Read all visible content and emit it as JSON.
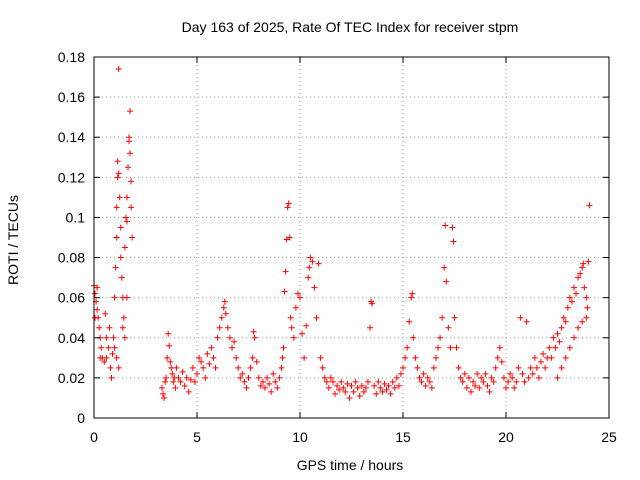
{
  "chart_data": {
    "type": "scatter",
    "title": "Day 163 of 2025, Rate Of TEC Index for receiver stpm",
    "xlabel": "GPS time / hours",
    "ylabel": "ROTI / TECUs",
    "xlim": [
      0,
      25
    ],
    "ylim": [
      0,
      0.18
    ],
    "xticks": [
      0,
      5,
      10,
      15,
      20,
      25
    ],
    "xtick_labels": [
      "0",
      "5",
      "10",
      "15",
      "20",
      "25"
    ],
    "yticks": [
      0,
      0.02,
      0.04,
      0.06,
      0.08,
      0.1,
      0.12,
      0.14,
      0.16,
      0.18
    ],
    "ytick_labels": [
      "0",
      "0.02",
      "0.04",
      "0.06",
      "0.08",
      "0.1",
      "0.12",
      "0.14",
      "0.16",
      "0.18"
    ],
    "grid": true,
    "marker": "+",
    "color": "#ff0000",
    "series": [
      {
        "name": "stpm",
        "points": [
          [
            0.0,
            0.066
          ],
          [
            0.05,
            0.062
          ],
          [
            0.1,
            0.058
          ],
          [
            0.15,
            0.054
          ],
          [
            0.2,
            0.05
          ],
          [
            0.25,
            0.045
          ],
          [
            0.3,
            0.04
          ],
          [
            0.35,
            0.035
          ],
          [
            0.4,
            0.03
          ],
          [
            0.5,
            0.028
          ],
          [
            0.6,
            0.03
          ],
          [
            0.7,
            0.035
          ],
          [
            0.8,
            0.025
          ],
          [
            0.85,
            0.02
          ],
          [
            0.9,
            0.032
          ],
          [
            0.95,
            0.04
          ],
          [
            1.0,
            0.06
          ],
          [
            1.05,
            0.075
          ],
          [
            1.1,
            0.09
          ],
          [
            1.1,
            0.105
          ],
          [
            1.15,
            0.12
          ],
          [
            1.15,
            0.128
          ],
          [
            1.2,
            0.122
          ],
          [
            1.2,
            0.174
          ],
          [
            1.25,
            0.11
          ],
          [
            1.3,
            0.095
          ],
          [
            1.3,
            0.08
          ],
          [
            1.35,
            0.07
          ],
          [
            1.4,
            0.06
          ],
          [
            1.45,
            0.05
          ],
          [
            1.5,
            0.085
          ],
          [
            1.55,
            0.1
          ],
          [
            1.6,
            0.11
          ],
          [
            1.6,
            0.098
          ],
          [
            1.65,
            0.125
          ],
          [
            1.7,
            0.14
          ],
          [
            1.7,
            0.138
          ],
          [
            1.75,
            0.153
          ],
          [
            1.75,
            0.132
          ],
          [
            1.8,
            0.118
          ],
          [
            1.8,
            0.105
          ],
          [
            1.85,
            0.09
          ],
          [
            1.6,
            0.06
          ],
          [
            1.5,
            0.04
          ],
          [
            0.55,
            0.052
          ],
          [
            0.75,
            0.045
          ],
          [
            0.15,
            0.065
          ],
          [
            0.05,
            0.05
          ],
          [
            0.3,
            0.03
          ],
          [
            0.6,
            0.04
          ],
          [
            1.1,
            0.03
          ],
          [
            1.2,
            0.025
          ],
          [
            1.0,
            0.035
          ],
          [
            1.4,
            0.045
          ],
          [
            3.3,
            0.015
          ],
          [
            3.35,
            0.012
          ],
          [
            3.4,
            0.01
          ],
          [
            3.45,
            0.018
          ],
          [
            3.5,
            0.02
          ],
          [
            3.55,
            0.03
          ],
          [
            3.6,
            0.042
          ],
          [
            3.65,
            0.036
          ],
          [
            3.7,
            0.028
          ],
          [
            3.75,
            0.025
          ],
          [
            3.8,
            0.022
          ],
          [
            3.85,
            0.018
          ],
          [
            3.9,
            0.02
          ],
          [
            3.95,
            0.015
          ],
          [
            4.0,
            0.025
          ],
          [
            4.1,
            0.02
          ],
          [
            4.2,
            0.018
          ],
          [
            4.3,
            0.023
          ],
          [
            4.4,
            0.016
          ],
          [
            4.5,
            0.02
          ],
          [
            4.6,
            0.013
          ],
          [
            4.7,
            0.019
          ],
          [
            4.8,
            0.025
          ],
          [
            4.9,
            0.018
          ],
          [
            5.0,
            0.022
          ],
          [
            5.1,
            0.03
          ],
          [
            5.2,
            0.028
          ],
          [
            5.3,
            0.025
          ],
          [
            5.4,
            0.02
          ],
          [
            5.5,
            0.032
          ],
          [
            5.6,
            0.027
          ],
          [
            5.7,
            0.035
          ],
          [
            5.8,
            0.03
          ],
          [
            5.9,
            0.025
          ],
          [
            6.0,
            0.04
          ],
          [
            6.1,
            0.045
          ],
          [
            6.2,
            0.05
          ],
          [
            6.3,
            0.055
          ],
          [
            6.35,
            0.058
          ],
          [
            6.4,
            0.052
          ],
          [
            6.5,
            0.045
          ],
          [
            6.6,
            0.04
          ],
          [
            6.7,
            0.035
          ],
          [
            6.8,
            0.038
          ],
          [
            6.9,
            0.03
          ],
          [
            7.0,
            0.025
          ],
          [
            7.1,
            0.02
          ],
          [
            7.2,
            0.022
          ],
          [
            7.3,
            0.018
          ],
          [
            7.4,
            0.015
          ],
          [
            7.5,
            0.02
          ],
          [
            7.6,
            0.025
          ],
          [
            7.7,
            0.03
          ],
          [
            7.75,
            0.043
          ],
          [
            7.8,
            0.04
          ],
          [
            7.9,
            0.028
          ],
          [
            8.0,
            0.02
          ],
          [
            8.1,
            0.016
          ],
          [
            8.2,
            0.018
          ],
          [
            8.3,
            0.015
          ],
          [
            8.4,
            0.02
          ],
          [
            8.5,
            0.017
          ],
          [
            8.6,
            0.013
          ],
          [
            8.7,
            0.022
          ],
          [
            8.8,
            0.018
          ],
          [
            8.9,
            0.015
          ],
          [
            9.0,
            0.02
          ],
          [
            9.1,
            0.025
          ],
          [
            9.15,
            0.03
          ],
          [
            9.2,
            0.035
          ],
          [
            9.25,
            0.063
          ],
          [
            9.3,
            0.073
          ],
          [
            9.35,
            0.089
          ],
          [
            9.4,
            0.105
          ],
          [
            9.45,
            0.107
          ],
          [
            9.5,
            0.09
          ],
          [
            9.55,
            0.05
          ],
          [
            9.6,
            0.045
          ],
          [
            9.7,
            0.04
          ],
          [
            9.8,
            0.055
          ],
          [
            9.9,
            0.062
          ],
          [
            10.0,
            0.06
          ],
          [
            10.1,
            0.042
          ],
          [
            10.2,
            0.03
          ],
          [
            10.3,
            0.046
          ],
          [
            10.4,
            0.07
          ],
          [
            10.45,
            0.075
          ],
          [
            10.5,
            0.08
          ],
          [
            10.6,
            0.078
          ],
          [
            10.7,
            0.065
          ],
          [
            10.8,
            0.05
          ],
          [
            10.9,
            0.077
          ],
          [
            11.0,
            0.03
          ],
          [
            11.1,
            0.025
          ],
          [
            11.2,
            0.02
          ],
          [
            11.3,
            0.018
          ],
          [
            11.4,
            0.015
          ],
          [
            11.5,
            0.02
          ],
          [
            11.6,
            0.018
          ],
          [
            11.7,
            0.012
          ],
          [
            11.8,
            0.016
          ],
          [
            11.9,
            0.014
          ],
          [
            12.0,
            0.018
          ],
          [
            12.1,
            0.015
          ],
          [
            12.2,
            0.013
          ],
          [
            12.3,
            0.017
          ],
          [
            12.4,
            0.01
          ],
          [
            12.5,
            0.016
          ],
          [
            12.6,
            0.013
          ],
          [
            12.7,
            0.018
          ],
          [
            12.8,
            0.015
          ],
          [
            12.9,
            0.011
          ],
          [
            13.0,
            0.016
          ],
          [
            13.1,
            0.013
          ],
          [
            13.2,
            0.015
          ],
          [
            13.3,
            0.018
          ],
          [
            13.4,
            0.045
          ],
          [
            13.45,
            0.058
          ],
          [
            13.5,
            0.057
          ],
          [
            13.6,
            0.016
          ],
          [
            13.7,
            0.012
          ],
          [
            13.8,
            0.018
          ],
          [
            13.9,
            0.015
          ],
          [
            14.0,
            0.013
          ],
          [
            14.1,
            0.017
          ],
          [
            14.2,
            0.014
          ],
          [
            14.3,
            0.016
          ],
          [
            14.4,
            0.012
          ],
          [
            14.5,
            0.018
          ],
          [
            14.6,
            0.015
          ],
          [
            14.7,
            0.02
          ],
          [
            14.8,
            0.016
          ],
          [
            14.9,
            0.022
          ],
          [
            15.0,
            0.025
          ],
          [
            15.1,
            0.03
          ],
          [
            15.2,
            0.035
          ],
          [
            15.3,
            0.048
          ],
          [
            15.4,
            0.06
          ],
          [
            15.45,
            0.062
          ],
          [
            15.5,
            0.04
          ],
          [
            15.6,
            0.03
          ],
          [
            15.7,
            0.025
          ],
          [
            15.8,
            0.02
          ],
          [
            15.9,
            0.018
          ],
          [
            16.0,
            0.022
          ],
          [
            16.1,
            0.016
          ],
          [
            16.2,
            0.02
          ],
          [
            16.3,
            0.018
          ],
          [
            16.4,
            0.015
          ],
          [
            16.5,
            0.025
          ],
          [
            16.6,
            0.03
          ],
          [
            16.7,
            0.035
          ],
          [
            16.8,
            0.04
          ],
          [
            16.9,
            0.05
          ],
          [
            17.0,
            0.075
          ],
          [
            17.05,
            0.096
          ],
          [
            17.1,
            0.068
          ],
          [
            17.2,
            0.045
          ],
          [
            17.3,
            0.035
          ],
          [
            17.4,
            0.095
          ],
          [
            17.45,
            0.088
          ],
          [
            17.5,
            0.05
          ],
          [
            17.6,
            0.035
          ],
          [
            17.7,
            0.025
          ],
          [
            17.8,
            0.02
          ],
          [
            17.9,
            0.018
          ],
          [
            18.0,
            0.022
          ],
          [
            18.1,
            0.015
          ],
          [
            18.2,
            0.02
          ],
          [
            18.3,
            0.013
          ],
          [
            18.4,
            0.018
          ],
          [
            18.5,
            0.016
          ],
          [
            18.6,
            0.022
          ],
          [
            18.7,
            0.015
          ],
          [
            18.8,
            0.02
          ],
          [
            18.9,
            0.018
          ],
          [
            19.0,
            0.022
          ],
          [
            19.1,
            0.016
          ],
          [
            19.2,
            0.013
          ],
          [
            19.3,
            0.02
          ],
          [
            19.4,
            0.018
          ],
          [
            19.5,
            0.025
          ],
          [
            19.6,
            0.03
          ],
          [
            19.7,
            0.035
          ],
          [
            19.8,
            0.028
          ],
          [
            19.9,
            0.02
          ],
          [
            20.0,
            0.015
          ],
          [
            20.1,
            0.018
          ],
          [
            20.2,
            0.022
          ],
          [
            20.3,
            0.02
          ],
          [
            20.4,
            0.015
          ],
          [
            20.5,
            0.018
          ],
          [
            20.6,
            0.025
          ],
          [
            20.7,
            0.05
          ],
          [
            20.8,
            0.022
          ],
          [
            20.9,
            0.018
          ],
          [
            21.0,
            0.048
          ],
          [
            21.1,
            0.02
          ],
          [
            21.2,
            0.025
          ],
          [
            21.3,
            0.022
          ],
          [
            21.4,
            0.03
          ],
          [
            21.5,
            0.025
          ],
          [
            21.6,
            0.02
          ],
          [
            21.7,
            0.028
          ],
          [
            21.8,
            0.032
          ],
          [
            21.9,
            0.025
          ],
          [
            22.0,
            0.03
          ],
          [
            22.1,
            0.035
          ],
          [
            22.2,
            0.03
          ],
          [
            22.3,
            0.04
          ],
          [
            22.4,
            0.035
          ],
          [
            22.5,
            0.042
          ],
          [
            22.6,
            0.038
          ],
          [
            22.7,
            0.045
          ],
          [
            22.8,
            0.05
          ],
          [
            22.9,
            0.048
          ],
          [
            23.0,
            0.055
          ],
          [
            23.1,
            0.06
          ],
          [
            23.2,
            0.058
          ],
          [
            23.3,
            0.065
          ],
          [
            23.4,
            0.062
          ],
          [
            23.5,
            0.07
          ],
          [
            23.6,
            0.072
          ],
          [
            23.7,
            0.075
          ],
          [
            23.75,
            0.077
          ],
          [
            23.8,
            0.065
          ],
          [
            23.9,
            0.06
          ],
          [
            23.95,
            0.055
          ],
          [
            24.0,
            0.078
          ],
          [
            24.05,
            0.106
          ],
          [
            23.9,
            0.05
          ],
          [
            23.7,
            0.048
          ],
          [
            23.5,
            0.045
          ],
          [
            23.3,
            0.04
          ],
          [
            23.1,
            0.035
          ],
          [
            22.9,
            0.03
          ],
          [
            22.7,
            0.025
          ],
          [
            22.5,
            0.02
          ]
        ]
      }
    ]
  }
}
